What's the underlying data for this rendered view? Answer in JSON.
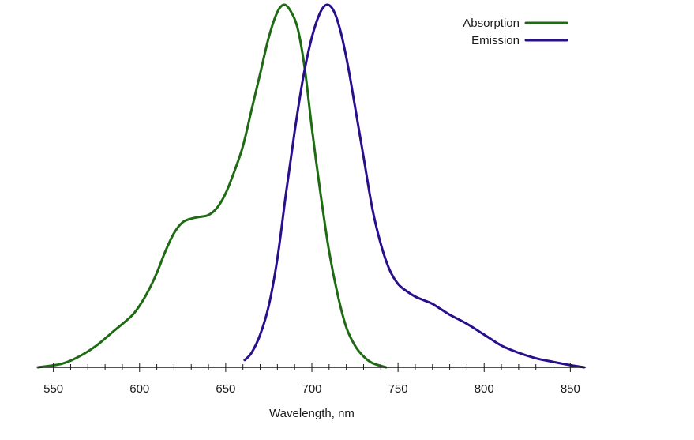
{
  "chart_data": {
    "type": "line",
    "title": "",
    "xlabel": "Wavelength, nm",
    "ylabel": "",
    "xlim": [
      541,
      859
    ],
    "ylim": [
      0,
      1
    ],
    "x_ticks_major": [
      550,
      600,
      650,
      700,
      750,
      800,
      850
    ],
    "x_ticks_minor_step": 10,
    "grid": false,
    "legend_position": "top-right",
    "series": [
      {
        "name": "Absorption",
        "color": "#1e6b14",
        "points": [
          [
            541,
            0.0
          ],
          [
            555,
            0.01
          ],
          [
            565,
            0.03
          ],
          [
            575,
            0.06
          ],
          [
            585,
            0.1
          ],
          [
            595,
            0.14
          ],
          [
            600,
            0.17
          ],
          [
            605,
            0.21
          ],
          [
            610,
            0.26
          ],
          [
            615,
            0.32
          ],
          [
            620,
            0.37
          ],
          [
            625,
            0.4
          ],
          [
            630,
            0.41
          ],
          [
            635,
            0.415
          ],
          [
            640,
            0.42
          ],
          [
            645,
            0.44
          ],
          [
            650,
            0.48
          ],
          [
            655,
            0.54
          ],
          [
            660,
            0.61
          ],
          [
            665,
            0.71
          ],
          [
            670,
            0.81
          ],
          [
            675,
            0.91
          ],
          [
            680,
            0.98
          ],
          [
            684,
            1.0
          ],
          [
            688,
            0.98
          ],
          [
            692,
            0.93
          ],
          [
            696,
            0.82
          ],
          [
            700,
            0.66
          ],
          [
            705,
            0.48
          ],
          [
            710,
            0.32
          ],
          [
            715,
            0.2
          ],
          [
            720,
            0.11
          ],
          [
            725,
            0.06
          ],
          [
            730,
            0.03
          ],
          [
            735,
            0.012
          ],
          [
            743,
            0.0
          ]
        ]
      },
      {
        "name": "Emission",
        "color": "#2a0f8c",
        "points": [
          [
            661,
            0.02
          ],
          [
            665,
            0.04
          ],
          [
            670,
            0.09
          ],
          [
            675,
            0.17
          ],
          [
            680,
            0.3
          ],
          [
            685,
            0.48
          ],
          [
            690,
            0.65
          ],
          [
            695,
            0.8
          ],
          [
            700,
            0.91
          ],
          [
            705,
            0.98
          ],
          [
            709,
            1.0
          ],
          [
            713,
            0.98
          ],
          [
            717,
            0.92
          ],
          [
            721,
            0.83
          ],
          [
            725,
            0.72
          ],
          [
            730,
            0.58
          ],
          [
            735,
            0.44
          ],
          [
            740,
            0.34
          ],
          [
            745,
            0.27
          ],
          [
            750,
            0.23
          ],
          [
            755,
            0.21
          ],
          [
            760,
            0.195
          ],
          [
            765,
            0.185
          ],
          [
            770,
            0.175
          ],
          [
            775,
            0.16
          ],
          [
            780,
            0.145
          ],
          [
            790,
            0.12
          ],
          [
            800,
            0.09
          ],
          [
            810,
            0.06
          ],
          [
            820,
            0.04
          ],
          [
            830,
            0.025
          ],
          [
            840,
            0.015
          ],
          [
            850,
            0.006
          ],
          [
            858,
            0.0
          ]
        ]
      }
    ]
  }
}
